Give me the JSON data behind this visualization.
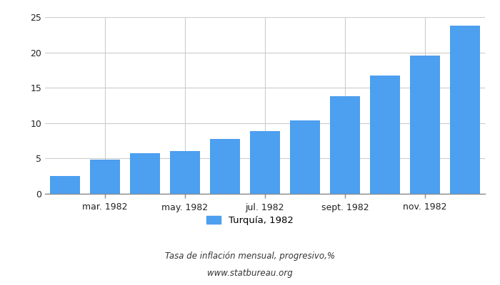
{
  "values": [
    2.5,
    4.8,
    5.7,
    6.0,
    7.8,
    8.9,
    10.4,
    13.8,
    16.7,
    19.6,
    23.8
  ],
  "bar_color": "#4d9fef",
  "xlabel_ticks": [
    3,
    5,
    7,
    9,
    11
  ],
  "xlabel_labels": [
    "mar. 1982",
    "may. 1982",
    "jul. 1982",
    "sept. 1982",
    "nov. 1982"
  ],
  "ylim": [
    0,
    25
  ],
  "yticks": [
    0,
    5,
    10,
    15,
    20,
    25
  ],
  "legend_label": "Turquía, 1982",
  "footer_line1": "Tasa de inflación mensual, progresivo,%",
  "footer_line2": "www.statbureau.org",
  "background_color": "#ffffff",
  "grid_color": "#cccccc"
}
